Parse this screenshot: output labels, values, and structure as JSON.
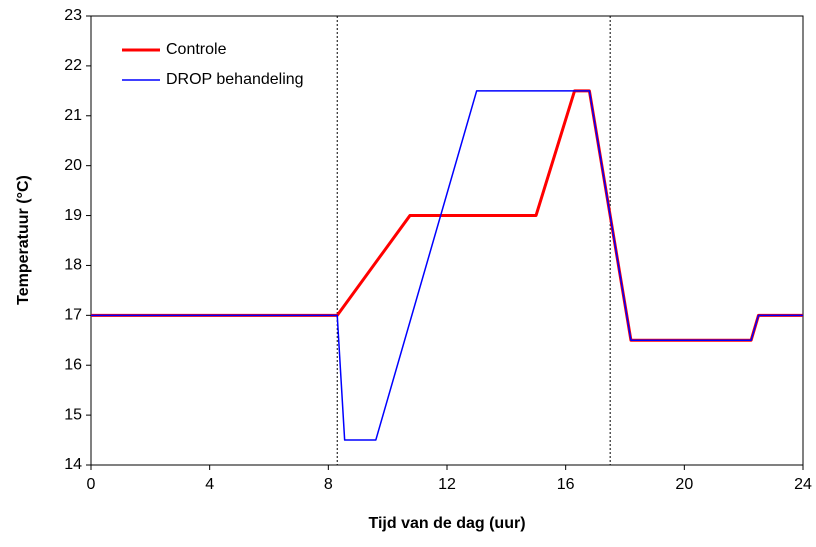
{
  "chart_data": {
    "type": "line",
    "xlabel": "Tijd van de dag (uur)",
    "ylabel": "Temperatuur (°C)",
    "series": [
      {
        "name": "Controle",
        "color": "#ff0000",
        "width": 3,
        "x": [
          0,
          8.3,
          10.75,
          15,
          16.3,
          16.8,
          18.2,
          22.25,
          22.5,
          24
        ],
        "values": [
          17,
          17,
          19,
          19,
          21.5,
          21.5,
          16.5,
          16.5,
          17,
          17
        ]
      },
      {
        "name": "DROP behandeling",
        "color": "#0000ff",
        "width": 1.5,
        "x": [
          0,
          8.3,
          8.55,
          9.6,
          13,
          16.8,
          18.2,
          22.25,
          22.5,
          24
        ],
        "values": [
          17,
          17,
          14.5,
          14.5,
          21.5,
          21.5,
          16.5,
          16.5,
          17,
          17
        ]
      }
    ],
    "vlines": [
      8.3,
      17.5
    ],
    "xlim": [
      0,
      24
    ],
    "xticks": [
      0,
      4,
      8,
      12,
      16,
      20,
      24
    ],
    "ylim": [
      14,
      23
    ],
    "yticks": [
      14,
      15,
      16,
      17,
      18,
      19,
      20,
      21,
      22,
      23
    ],
    "grid": false,
    "legend": "upper left"
  }
}
